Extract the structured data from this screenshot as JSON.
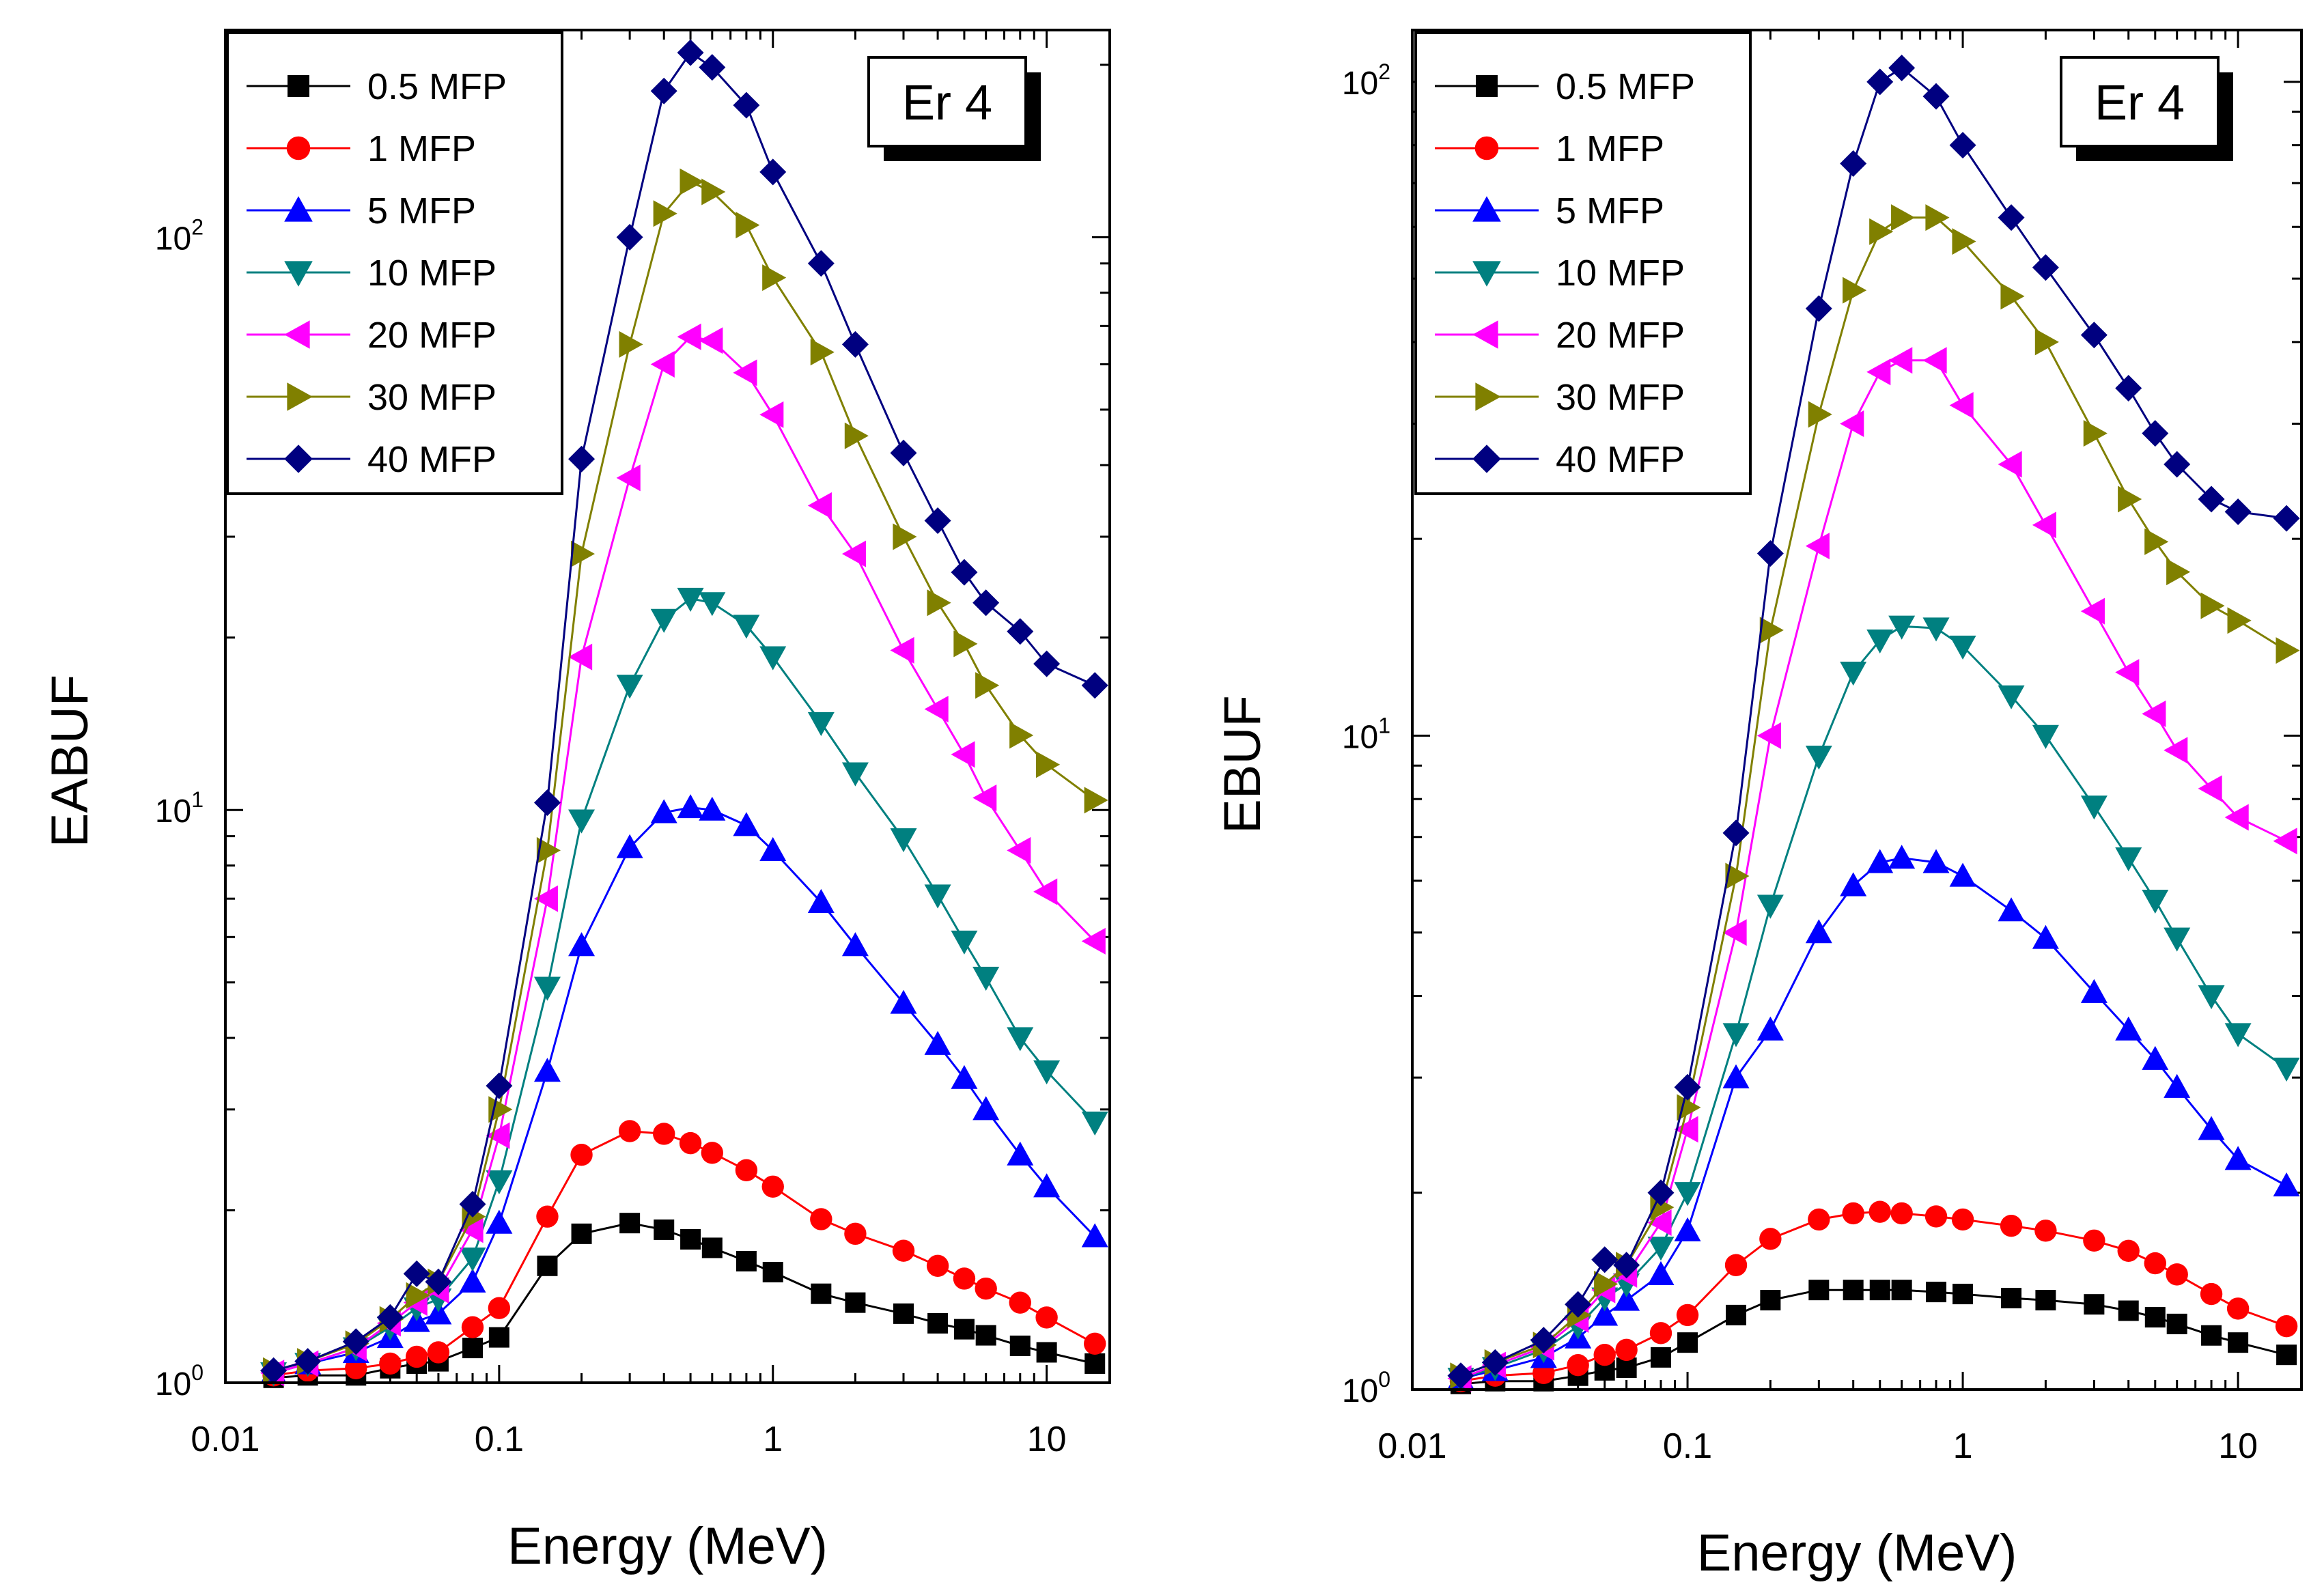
{
  "chart_data": [
    {
      "type": "line",
      "xscale": "log",
      "yscale": "log",
      "xlim": [
        0.01,
        17
      ],
      "ylim": [
        1,
        230
      ],
      "xlabel": "Energy (MeV)",
      "ylabel": "EABUF",
      "box_label": "Er 4",
      "xticks": [
        {
          "value": 0.01,
          "label": "0.01"
        },
        {
          "value": 0.1,
          "label": "0.1"
        },
        {
          "value": 1,
          "label": "1"
        },
        {
          "value": 10,
          "label": "10"
        }
      ],
      "yticks": [
        {
          "value": 1,
          "base": "10",
          "exp": "0"
        },
        {
          "value": 10,
          "base": "10",
          "exp": "1"
        },
        {
          "value": 100,
          "base": "10",
          "exp": "2"
        }
      ],
      "x": [
        0.015,
        0.02,
        0.03,
        0.04,
        0.05,
        0.06,
        0.08,
        0.1,
        0.15,
        0.2,
        0.3,
        0.4,
        0.5,
        0.6,
        0.8,
        1,
        1.5,
        2,
        3,
        4,
        5,
        6,
        8,
        10,
        15
      ],
      "series": [
        {
          "name": "0.5 MFP",
          "color": "#000000",
          "marker": "square",
          "values": [
            1.02,
            1.03,
            1.03,
            1.06,
            1.08,
            1.09,
            1.15,
            1.2,
            1.6,
            1.82,
            1.9,
            1.85,
            1.78,
            1.72,
            1.63,
            1.56,
            1.43,
            1.38,
            1.32,
            1.27,
            1.24,
            1.21,
            1.16,
            1.13,
            1.08
          ]
        },
        {
          "name": "1 MFP",
          "color": "#ff0000",
          "marker": "circle",
          "values": [
            1.03,
            1.05,
            1.06,
            1.08,
            1.11,
            1.13,
            1.25,
            1.35,
            1.95,
            2.5,
            2.75,
            2.72,
            2.62,
            2.52,
            2.35,
            2.2,
            1.93,
            1.82,
            1.7,
            1.6,
            1.52,
            1.46,
            1.38,
            1.3,
            1.17
          ]
        },
        {
          "name": "5 MFP",
          "color": "#0000ff",
          "marker": "triangle-up",
          "values": [
            1.04,
            1.08,
            1.13,
            1.2,
            1.28,
            1.32,
            1.5,
            1.9,
            3.5,
            5.8,
            8.6,
            9.9,
            10.1,
            10.0,
            9.4,
            8.5,
            6.9,
            5.8,
            4.6,
            3.9,
            3.4,
            3.0,
            2.5,
            2.2,
            1.8
          ]
        },
        {
          "name": "10 MFP",
          "color": "#008080",
          "marker": "triangle-down",
          "values": [
            1.04,
            1.08,
            1.15,
            1.25,
            1.35,
            1.4,
            1.65,
            2.25,
            4.9,
            9.6,
            16.5,
            21.5,
            23.4,
            23.0,
            21.0,
            18.5,
            14.2,
            11.6,
            8.9,
            7.1,
            5.9,
            5.1,
            4.0,
            3.5,
            2.85
          ]
        },
        {
          "name": "20 MFP",
          "color": "#ff00ff",
          "marker": "triangle-left",
          "values": [
            1.04,
            1.08,
            1.15,
            1.27,
            1.38,
            1.45,
            1.85,
            2.7,
            7.0,
            18.5,
            38.0,
            60.0,
            67.0,
            66.0,
            58.0,
            49.0,
            34.0,
            28.0,
            19.0,
            15.0,
            12.5,
            10.5,
            8.5,
            7.2,
            5.9
          ]
        },
        {
          "name": "30 MFP",
          "color": "#808000",
          "marker": "triangle-right",
          "values": [
            1.05,
            1.09,
            1.17,
            1.29,
            1.42,
            1.5,
            1.95,
            3.0,
            8.5,
            28.0,
            65.0,
            110.0,
            125.0,
            120.0,
            105.0,
            85.0,
            63.0,
            45.0,
            30.0,
            23.0,
            19.5,
            16.5,
            13.5,
            12.0,
            10.4
          ]
        },
        {
          "name": "40 MFP",
          "color": "#000080",
          "marker": "diamond",
          "values": [
            1.05,
            1.09,
            1.18,
            1.3,
            1.55,
            1.5,
            2.05,
            3.3,
            10.3,
            41.0,
            100.0,
            180.0,
            210.0,
            198.0,
            170.0,
            130.0,
            90.0,
            65.0,
            42.0,
            32.0,
            26.0,
            23.0,
            20.5,
            18.0,
            16.5
          ]
        }
      ]
    },
    {
      "type": "line",
      "xscale": "log",
      "yscale": "log",
      "xlim": [
        0.01,
        17
      ],
      "ylim": [
        1,
        120
      ],
      "xlabel": "Energy (MeV)",
      "ylabel": "EBUF",
      "box_label": "Er 4",
      "xticks": [
        {
          "value": 0.01,
          "label": "0.01"
        },
        {
          "value": 0.1,
          "label": "0.1"
        },
        {
          "value": 1,
          "label": "1"
        },
        {
          "value": 10,
          "label": "10"
        }
      ],
      "yticks": [
        {
          "value": 1,
          "base": "10",
          "exp": "0"
        },
        {
          "value": 10,
          "base": "10",
          "exp": "1"
        },
        {
          "value": 100,
          "base": "10",
          "exp": "2"
        }
      ],
      "x": [
        0.015,
        0.02,
        0.03,
        0.04,
        0.05,
        0.06,
        0.08,
        0.1,
        0.15,
        0.2,
        0.3,
        0.4,
        0.5,
        0.6,
        0.8,
        1,
        1.5,
        2,
        3,
        4,
        5,
        6,
        8,
        10,
        15
      ],
      "series": [
        {
          "name": "0.5 MFP",
          "color": "#000000",
          "marker": "square",
          "values": [
            1.02,
            1.03,
            1.03,
            1.05,
            1.07,
            1.08,
            1.12,
            1.18,
            1.3,
            1.37,
            1.42,
            1.42,
            1.42,
            1.42,
            1.41,
            1.4,
            1.38,
            1.37,
            1.35,
            1.32,
            1.29,
            1.26,
            1.21,
            1.18,
            1.13
          ]
        },
        {
          "name": "1 MFP",
          "color": "#ff0000",
          "marker": "circle",
          "values": [
            1.03,
            1.05,
            1.06,
            1.09,
            1.13,
            1.15,
            1.22,
            1.3,
            1.55,
            1.7,
            1.82,
            1.86,
            1.87,
            1.86,
            1.84,
            1.82,
            1.78,
            1.75,
            1.69,
            1.63,
            1.56,
            1.5,
            1.4,
            1.33,
            1.25
          ]
        },
        {
          "name": "5 MFP",
          "color": "#0000ff",
          "marker": "triangle-up",
          "values": [
            1.04,
            1.07,
            1.12,
            1.2,
            1.3,
            1.37,
            1.5,
            1.75,
            3.0,
            3.55,
            5.0,
            5.9,
            6.4,
            6.5,
            6.4,
            6.1,
            5.4,
            4.9,
            4.05,
            3.55,
            3.2,
            2.9,
            2.5,
            2.25,
            2.05
          ]
        },
        {
          "name": "10 MFP",
          "color": "#008080",
          "marker": "triangle-down",
          "values": [
            1.04,
            1.08,
            1.15,
            1.25,
            1.38,
            1.45,
            1.65,
            2.0,
            3.5,
            5.5,
            9.3,
            12.5,
            14.0,
            14.7,
            14.6,
            13.7,
            11.5,
            10.0,
            7.8,
            6.5,
            5.6,
            4.9,
            4.0,
            3.5,
            3.1
          ]
        },
        {
          "name": "20 MFP",
          "color": "#ff00ff",
          "marker": "triangle-left",
          "values": [
            1.04,
            1.09,
            1.16,
            1.28,
            1.42,
            1.5,
            1.8,
            2.5,
            5.0,
            10.0,
            19.5,
            30.0,
            36.0,
            37.5,
            37.5,
            32.0,
            26.0,
            21.0,
            15.5,
            12.5,
            10.8,
            9.5,
            8.3,
            7.5,
            6.9
          ]
        },
        {
          "name": "30 MFP",
          "color": "#808000",
          "marker": "triangle-right",
          "values": [
            1.05,
            1.1,
            1.17,
            1.3,
            1.45,
            1.55,
            1.9,
            2.7,
            6.1,
            14.5,
            31.0,
            48.0,
            59.0,
            62.0,
            62.0,
            57.0,
            47.0,
            40.0,
            29.0,
            23.0,
            19.8,
            17.8,
            15.8,
            15.0,
            13.5
          ]
        },
        {
          "name": "40 MFP",
          "color": "#000080",
          "marker": "diamond",
          "values": [
            1.05,
            1.1,
            1.19,
            1.35,
            1.58,
            1.55,
            2.0,
            2.9,
            7.1,
            19.0,
            45.0,
            75.0,
            100.0,
            105.0,
            95.0,
            80.0,
            62.0,
            52.0,
            41.0,
            34.0,
            29.0,
            26.0,
            23.0,
            22.0,
            21.5
          ]
        }
      ]
    }
  ]
}
